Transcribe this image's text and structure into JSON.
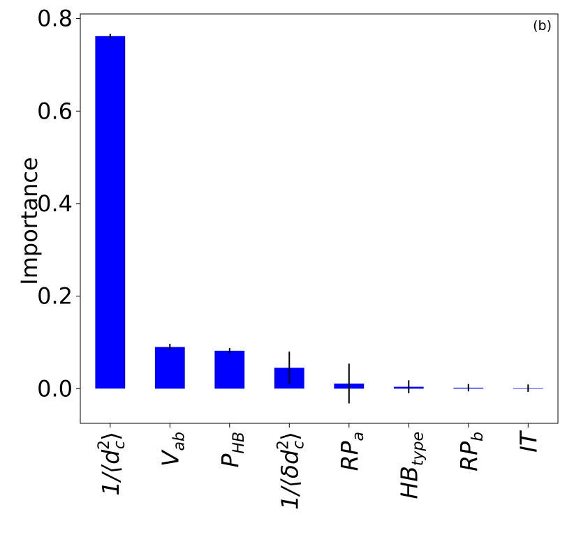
{
  "chart_data": {
    "type": "bar",
    "panel_label": "(b)",
    "ylabel": "Importance",
    "xlabel": "",
    "ylim": [
      -0.075,
      0.81
    ],
    "yticks": [
      0.0,
      0.2,
      0.4,
      0.6,
      0.8
    ],
    "ytick_labels": [
      "0.0",
      "0.2",
      "0.4",
      "0.6",
      "0.8"
    ],
    "grid": false,
    "categories": [
      {
        "base": "1/⟨d",
        "sup": "2",
        "sub": "c",
        "tail": "⟩",
        "italic": false
      },
      {
        "base": "V",
        "sub": "ab",
        "italic": true
      },
      {
        "base": "P",
        "sub": "HB",
        "italic": true
      },
      {
        "base": "1/⟨δd",
        "sup": "2",
        "sub": "c",
        "tail": "⟩",
        "italic": false
      },
      {
        "base": "RP",
        "sub": "a",
        "italic": true
      },
      {
        "base": "HB",
        "sub": "type",
        "italic": true
      },
      {
        "base": "RP",
        "sub": "b",
        "italic": true
      },
      {
        "base": "IT",
        "italic": true
      }
    ],
    "values": [
      0.762,
      0.09,
      0.082,
      0.045,
      0.011,
      0.004,
      0.002,
      0.001
    ],
    "errors": [
      0.005,
      0.007,
      0.006,
      0.035,
      0.043,
      0.014,
      0.008,
      0.008
    ],
    "bar_color": "#0000ff",
    "error_color": "#000000"
  }
}
